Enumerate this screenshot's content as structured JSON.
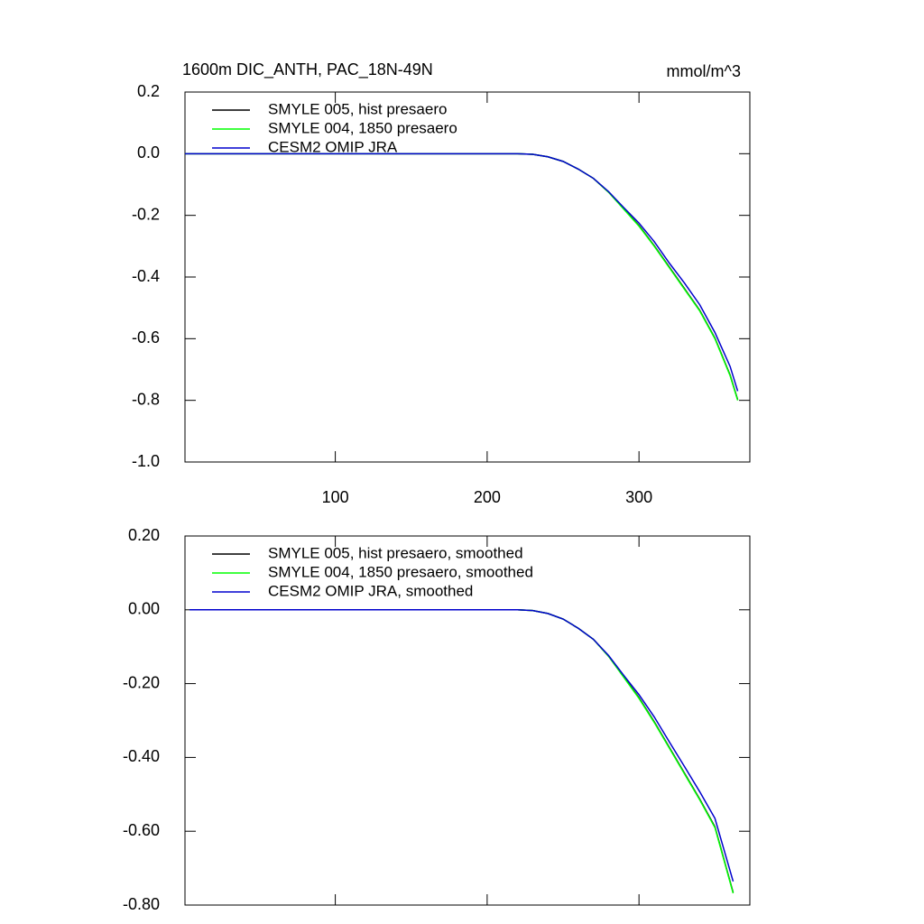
{
  "chart_data": [
    {
      "type": "line",
      "title": "1600m DIC_ANTH, PAC_18N-49N",
      "units": "mmol/m^3",
      "x": [
        1,
        50,
        100,
        150,
        200,
        220,
        230,
        240,
        250,
        260,
        270,
        280,
        290,
        300,
        310,
        320,
        330,
        340,
        350,
        360,
        365
      ],
      "series": [
        {
          "name": "SMYLE 005, hist presaero",
          "color": "#000000",
          "values": [
            0,
            0,
            0,
            0,
            0,
            0,
            -0.002,
            -0.01,
            -0.025,
            -0.05,
            -0.08,
            -0.125,
            -0.179,
            -0.233,
            -0.298,
            -0.368,
            -0.438,
            -0.508,
            -0.598,
            -0.718,
            -0.798
          ]
        },
        {
          "name": "SMYLE 004, 1850 presaero",
          "color": "#00ff00",
          "values": [
            0,
            0,
            0,
            0,
            0,
            0,
            -0.002,
            -0.01,
            -0.025,
            -0.05,
            -0.08,
            -0.125,
            -0.18,
            -0.235,
            -0.3,
            -0.37,
            -0.44,
            -0.51,
            -0.6,
            -0.72,
            -0.8
          ]
        },
        {
          "name": "CESM2 OMIP JRA",
          "color": "#0000cd",
          "values": [
            0,
            0,
            0,
            0,
            0,
            0,
            -0.002,
            -0.01,
            -0.025,
            -0.05,
            -0.08,
            -0.123,
            -0.175,
            -0.225,
            -0.285,
            -0.355,
            -0.42,
            -0.49,
            -0.58,
            -0.69,
            -0.77
          ]
        }
      ],
      "xlim": [
        1,
        373
      ],
      "xticks": [
        100,
        200,
        300
      ],
      "ylim": [
        -1.0,
        0.2
      ],
      "yticks": [
        0.2,
        {
          "value": 0,
          "label": "0.0"
        },
        -0.2,
        -0.4,
        -0.6,
        -0.8,
        {
          "value": -1.0,
          "label": "-1.0"
        }
      ]
    },
    {
      "type": "line",
      "x": [
        4,
        50,
        100,
        150,
        200,
        220,
        230,
        240,
        250,
        260,
        270,
        280,
        290,
        300,
        310,
        320,
        330,
        340,
        350,
        362
      ],
      "series": [
        {
          "name": "SMYLE 005, hist presaero, smoothed",
          "color": "#000000",
          "values": [
            0,
            0,
            0,
            0,
            0,
            0,
            -0.002,
            -0.01,
            -0.025,
            -0.05,
            -0.08,
            -0.126,
            -0.182,
            -0.238,
            -0.303,
            -0.373,
            -0.443,
            -0.513,
            -0.588,
            -0.766
          ]
        },
        {
          "name": "SMYLE 004, 1850 presaero, smoothed",
          "color": "#00ff00",
          "values": [
            0,
            0,
            0,
            0,
            0,
            0,
            -0.002,
            -0.01,
            -0.025,
            -0.05,
            -0.08,
            -0.126,
            -0.183,
            -0.24,
            -0.305,
            -0.375,
            -0.445,
            -0.515,
            -0.59,
            -0.768
          ]
        },
        {
          "name": "CESM2 OMIP JRA, smoothed",
          "color": "#0000cd",
          "values": [
            0,
            0,
            0,
            0,
            0,
            0,
            -0.002,
            -0.01,
            -0.025,
            -0.05,
            -0.08,
            -0.124,
            -0.178,
            -0.23,
            -0.29,
            -0.358,
            -0.425,
            -0.493,
            -0.565,
            -0.736
          ]
        }
      ],
      "xlim": [
        1,
        373
      ],
      "xticks": [
        100,
        200,
        300
      ],
      "ylim": [
        -0.8,
        0.2
      ],
      "yticks": [
        {
          "value": 0.2,
          "label": "0.20"
        },
        {
          "value": 0,
          "label": "0.00"
        },
        {
          "value": -0.2,
          "label": "-0.20"
        },
        {
          "value": -0.4,
          "label": "-0.40"
        },
        {
          "value": -0.6,
          "label": "-0.60"
        },
        {
          "value": -0.8,
          "label": "-0.80"
        }
      ]
    }
  ]
}
